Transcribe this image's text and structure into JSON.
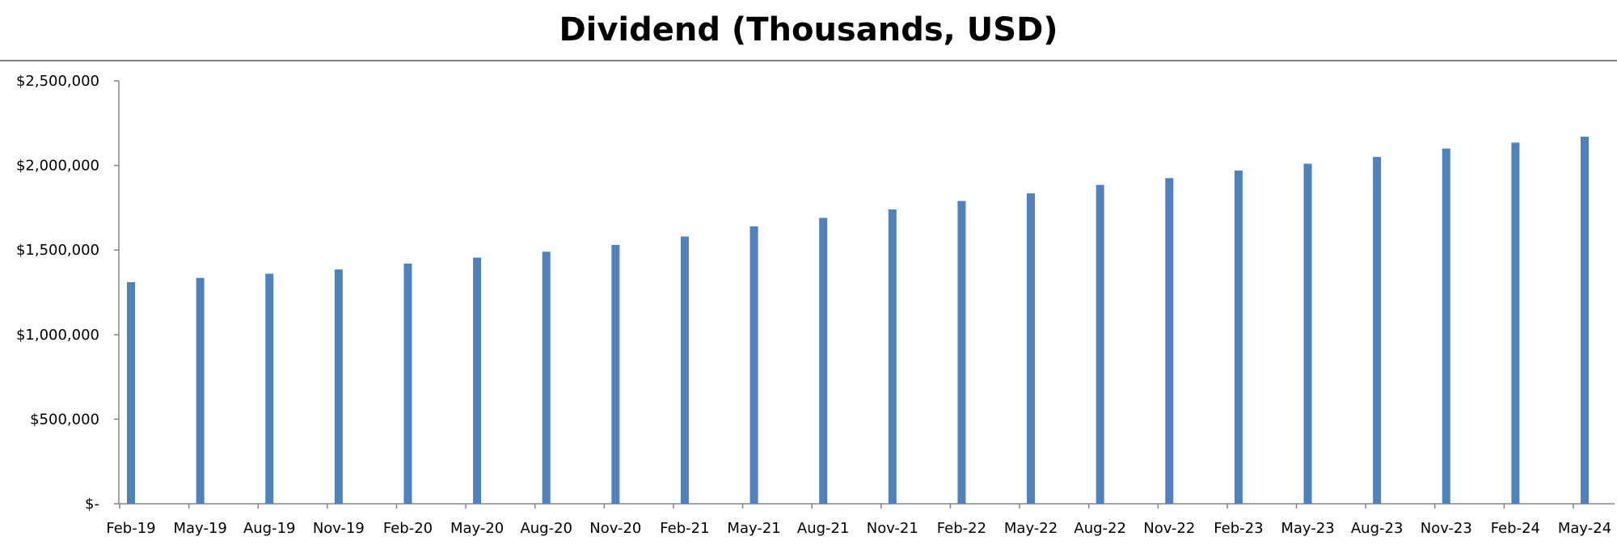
{
  "chart_data": {
    "type": "bar",
    "title": "Dividend (Thousands, USD)",
    "xlabel": "",
    "ylabel": "",
    "categories": [
      "Feb-19",
      "May-19",
      "Aug-19",
      "Nov-19",
      "Feb-20",
      "May-20",
      "Aug-20",
      "Nov-20",
      "Feb-21",
      "May-21",
      "Aug-21",
      "Nov-21",
      "Feb-22",
      "May-22",
      "Aug-22",
      "Nov-22",
      "Feb-23",
      "May-23",
      "Aug-23",
      "Nov-23",
      "Feb-24",
      "May-24"
    ],
    "values": [
      1310000,
      1335000,
      1360000,
      1385000,
      1420000,
      1455000,
      1490000,
      1530000,
      1580000,
      1640000,
      1690000,
      1740000,
      1790000,
      1835000,
      1885000,
      1925000,
      1970000,
      2010000,
      2050000,
      2100000,
      2135000,
      2170000
    ],
    "ylim": [
      0,
      2500000
    ],
    "yticks": [
      0,
      500000,
      1000000,
      1500000,
      2000000,
      2500000
    ],
    "ytick_labels": [
      "$-",
      "$500,000",
      "$1,000,000",
      "$1,500,000",
      "$2,000,000",
      "$2,500,000"
    ],
    "bar_color": "#4f81bd",
    "grid": false,
    "legend": "none"
  }
}
